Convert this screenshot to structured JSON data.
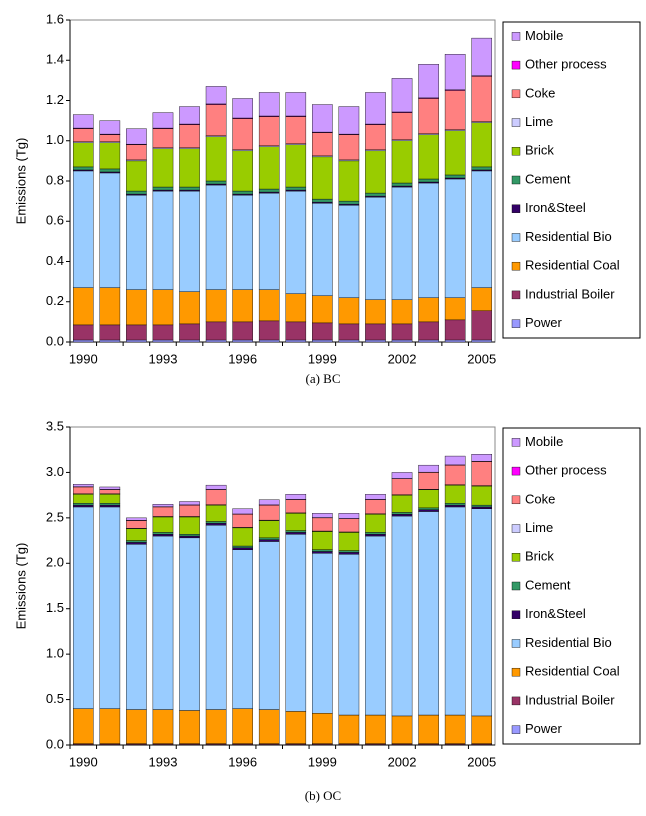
{
  "chart_data": [
    {
      "type": "stacked_bar",
      "caption": "(a) BC",
      "y_label": "Emissions (Tg)",
      "categories": [
        "1990",
        null,
        null,
        "1993",
        null,
        null,
        "1996",
        null,
        null,
        "1999",
        null,
        null,
        "2002",
        null,
        null,
        "2005"
      ],
      "ylim": [
        0,
        1.6
      ],
      "yticks": [
        {
          "value": 0,
          "label": "0.0"
        },
        0.2,
        0.4,
        0.6,
        0.8,
        {
          "value": 1,
          "label": "1.0"
        },
        1.2,
        1.4,
        1.6
      ],
      "series": [
        {
          "name": "Power",
          "color": "#9999ff",
          "values": [
            0.01,
            0.01,
            0.01,
            0.01,
            0.01,
            0.01,
            0.01,
            0.01,
            0.01,
            0.01,
            0.01,
            0.01,
            0.01,
            0.01,
            0.01,
            0.01
          ]
        },
        {
          "name": "Industrial Boiler",
          "color": "#993366",
          "values": [
            0.075,
            0.075,
            0.075,
            0.075,
            0.08,
            0.09,
            0.09,
            0.095,
            0.09,
            0.085,
            0.08,
            0.08,
            0.08,
            0.09,
            0.1,
            0.145
          ]
        },
        {
          "name": "Residential Coal",
          "color": "#ff9900",
          "values": [
            0.185,
            0.185,
            0.175,
            0.175,
            0.16,
            0.16,
            0.16,
            0.155,
            0.14,
            0.135,
            0.13,
            0.12,
            0.12,
            0.12,
            0.11,
            0.115
          ]
        },
        {
          "name": "Residential Bio",
          "color": "#99ccff",
          "values": [
            0.58,
            0.57,
            0.47,
            0.49,
            0.5,
            0.52,
            0.47,
            0.48,
            0.51,
            0.46,
            0.46,
            0.51,
            0.56,
            0.57,
            0.59,
            0.58
          ]
        },
        {
          "name": "Iron&Steel",
          "color": "#330066",
          "values": [
            0.005,
            0.005,
            0.005,
            0.005,
            0.005,
            0.005,
            0.005,
            0.005,
            0.005,
            0.005,
            0.005,
            0.005,
            0.005,
            0.005,
            0.005,
            0.005
          ]
        },
        {
          "name": "Cement",
          "color": "#339966",
          "values": [
            0.015,
            0.015,
            0.015,
            0.015,
            0.015,
            0.015,
            0.015,
            0.015,
            0.015,
            0.015,
            0.015,
            0.015,
            0.015,
            0.015,
            0.015,
            0.015
          ]
        },
        {
          "name": "Brick",
          "color": "#99cc00",
          "values": [
            0.12,
            0.13,
            0.15,
            0.19,
            0.19,
            0.22,
            0.2,
            0.21,
            0.21,
            0.21,
            0.2,
            0.21,
            0.21,
            0.22,
            0.22,
            0.22
          ]
        },
        {
          "name": "Lime",
          "color": "#ccccff",
          "values": [
            0.005,
            0.005,
            0.005,
            0.005,
            0.005,
            0.005,
            0.005,
            0.005,
            0.005,
            0.005,
            0.005,
            0.005,
            0.005,
            0.005,
            0.005,
            0.005
          ]
        },
        {
          "name": "Coke",
          "color": "#ff8080",
          "values": [
            0.065,
            0.035,
            0.075,
            0.095,
            0.115,
            0.155,
            0.155,
            0.145,
            0.135,
            0.115,
            0.125,
            0.125,
            0.135,
            0.175,
            0.195,
            0.225
          ]
        },
        {
          "name": "Other process",
          "color": "#ff00ff",
          "values": [
            0.003,
            0.003,
            0.003,
            0.003,
            0.003,
            0.003,
            0.003,
            0.003,
            0.003,
            0.003,
            0.003,
            0.003,
            0.003,
            0.003,
            0.003,
            0.003
          ]
        },
        {
          "name": "Mobile",
          "color": "#cc99ff",
          "values": [
            0.067,
            0.067,
            0.077,
            0.077,
            0.087,
            0.087,
            0.097,
            0.117,
            0.117,
            0.137,
            0.137,
            0.157,
            0.167,
            0.167,
            0.177,
            0.187
          ]
        }
      ]
    },
    {
      "type": "stacked_bar",
      "caption": "(b) OC",
      "y_label": "Emissions (Tg)",
      "categories": [
        "1990",
        null,
        null,
        "1993",
        null,
        null,
        "1996",
        null,
        null,
        "1999",
        null,
        null,
        "2002",
        null,
        null,
        "2005"
      ],
      "ylim": [
        0,
        3.5
      ],
      "yticks": [
        {
          "value": 0,
          "label": "0.0"
        },
        0.5,
        {
          "value": 1,
          "label": "1.0"
        },
        1.5,
        {
          "value": 2,
          "label": "2.0"
        },
        2.5,
        {
          "value": 3,
          "label": "3.0"
        },
        3.5
      ],
      "series": [
        {
          "name": "Power",
          "color": "#9999ff",
          "values": [
            0.005,
            0.005,
            0.005,
            0.005,
            0.005,
            0.005,
            0.005,
            0.005,
            0.005,
            0.005,
            0.005,
            0.005,
            0.005,
            0.005,
            0.005,
            0.005
          ]
        },
        {
          "name": "Industrial Boiler",
          "color": "#993366",
          "values": [
            0.01,
            0.01,
            0.01,
            0.01,
            0.01,
            0.01,
            0.01,
            0.01,
            0.01,
            0.01,
            0.01,
            0.01,
            0.01,
            0.01,
            0.01,
            0.01
          ]
        },
        {
          "name": "Residential Coal",
          "color": "#ff9900",
          "values": [
            0.385,
            0.385,
            0.375,
            0.375,
            0.365,
            0.375,
            0.385,
            0.375,
            0.355,
            0.335,
            0.315,
            0.315,
            0.305,
            0.315,
            0.315,
            0.305
          ]
        },
        {
          "name": "Residential Bio",
          "color": "#99ccff",
          "values": [
            2.22,
            2.22,
            1.82,
            1.91,
            1.9,
            2.03,
            1.75,
            1.85,
            1.95,
            1.76,
            1.77,
            1.97,
            2.2,
            2.24,
            2.29,
            2.28
          ]
        },
        {
          "name": "Iron&Steel",
          "color": "#330066",
          "values": [
            0.02,
            0.02,
            0.02,
            0.02,
            0.02,
            0.02,
            0.02,
            0.02,
            0.02,
            0.02,
            0.02,
            0.02,
            0.02,
            0.02,
            0.02,
            0.02
          ]
        },
        {
          "name": "Cement",
          "color": "#339966",
          "values": [
            0.02,
            0.02,
            0.02,
            0.02,
            0.02,
            0.02,
            0.02,
            0.02,
            0.02,
            0.02,
            0.02,
            0.02,
            0.02,
            0.02,
            0.02,
            0.02
          ]
        },
        {
          "name": "Brick",
          "color": "#99cc00",
          "values": [
            0.1,
            0.1,
            0.13,
            0.17,
            0.19,
            0.18,
            0.2,
            0.19,
            0.19,
            0.2,
            0.2,
            0.2,
            0.19,
            0.2,
            0.2,
            0.21
          ]
        },
        {
          "name": "Lime",
          "color": "#ccccff",
          "values": [
            0.005,
            0.005,
            0.005,
            0.005,
            0.005,
            0.005,
            0.005,
            0.005,
            0.005,
            0.005,
            0.005,
            0.005,
            0.005,
            0.005,
            0.005,
            0.005
          ]
        },
        {
          "name": "Coke",
          "color": "#ff8080",
          "values": [
            0.075,
            0.045,
            0.085,
            0.105,
            0.125,
            0.165,
            0.145,
            0.165,
            0.145,
            0.145,
            0.145,
            0.155,
            0.175,
            0.185,
            0.215,
            0.265
          ]
        },
        {
          "name": "Other process",
          "color": "#ff00ff",
          "values": [
            0.003,
            0.003,
            0.003,
            0.003,
            0.003,
            0.003,
            0.003,
            0.003,
            0.003,
            0.003,
            0.003,
            0.003,
            0.003,
            0.003,
            0.003,
            0.003
          ]
        },
        {
          "name": "Mobile",
          "color": "#cc99ff",
          "values": [
            0.027,
            0.027,
            0.027,
            0.027,
            0.037,
            0.047,
            0.057,
            0.057,
            0.057,
            0.047,
            0.057,
            0.057,
            0.067,
            0.077,
            0.097,
            0.077
          ]
        }
      ]
    }
  ]
}
